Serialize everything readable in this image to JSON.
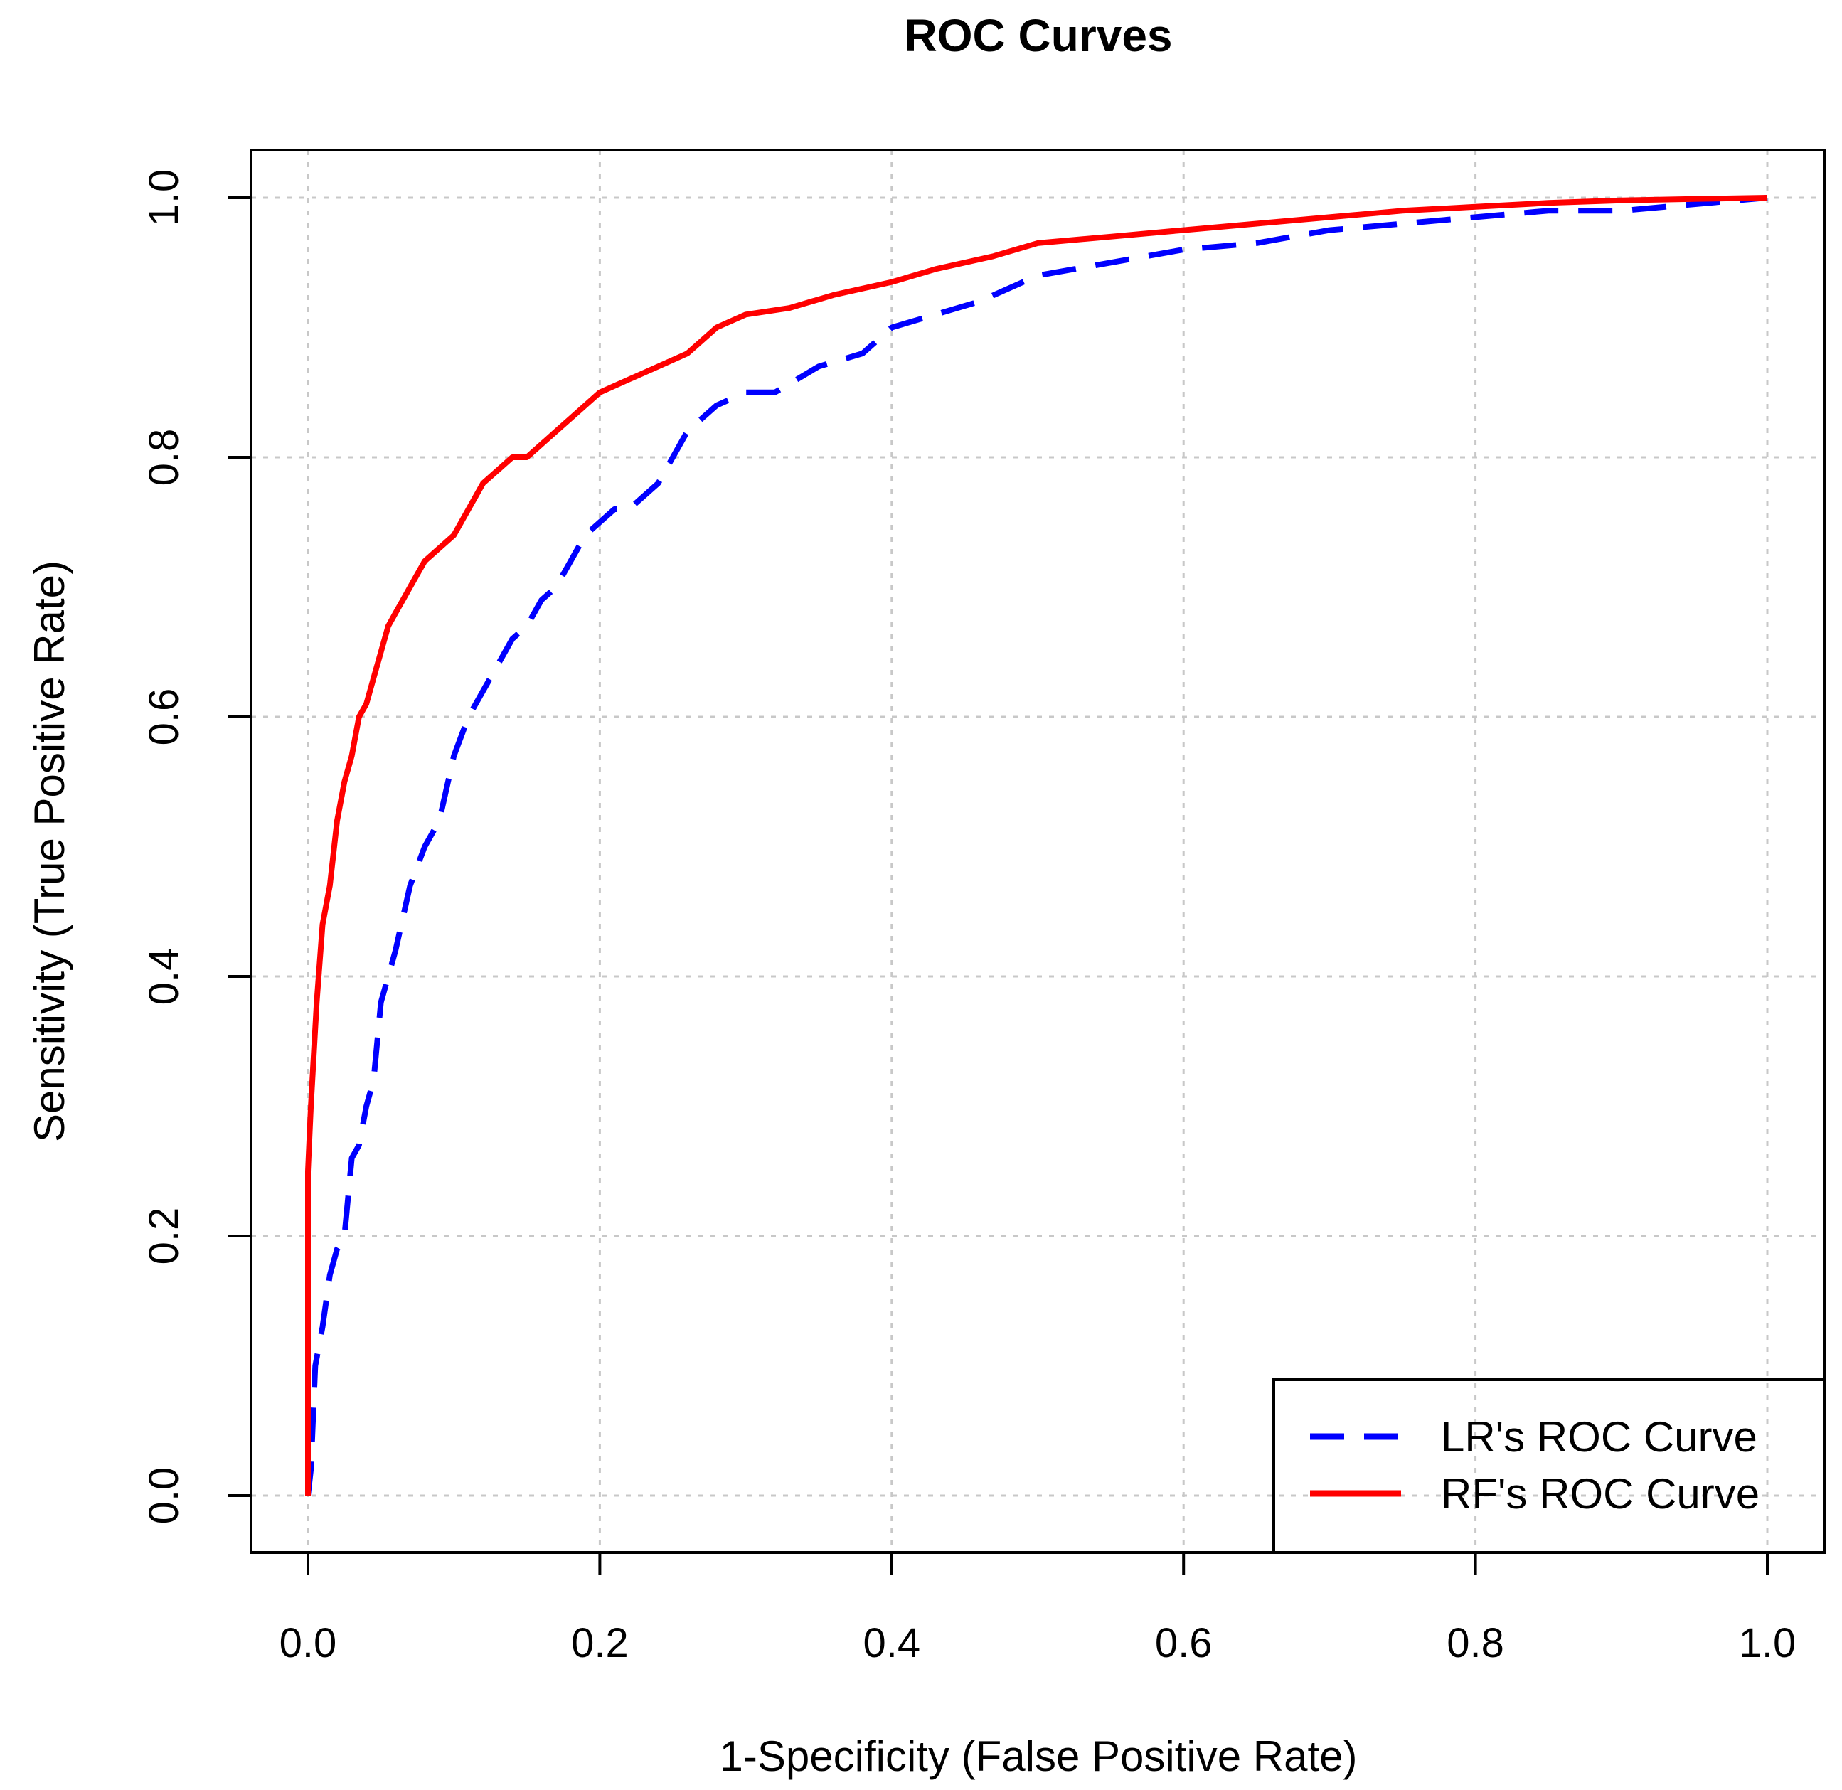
{
  "chart_data": {
    "type": "line",
    "title": "ROC Curves",
    "xlabel": "1-Specificity (False Positive Rate)",
    "ylabel": "Sensitivity (True Positive Rate)",
    "xlim": [
      0,
      1
    ],
    "ylim": [
      0,
      1
    ],
    "xticks": [
      "0.0",
      "0.2",
      "0.4",
      "0.6",
      "0.8",
      "1.0"
    ],
    "yticks": [
      "0.0",
      "0.2",
      "0.4",
      "0.6",
      "0.8",
      "1.0"
    ],
    "grid": true,
    "legend_position": "bottom-right",
    "series": [
      {
        "name": "LR's ROC Curve",
        "color": "#0000FF",
        "style": "dashed",
        "x": [
          0.0,
          0.002,
          0.005,
          0.01,
          0.015,
          0.02,
          0.025,
          0.03,
          0.035,
          0.04,
          0.045,
          0.05,
          0.055,
          0.06,
          0.07,
          0.08,
          0.09,
          0.1,
          0.11,
          0.12,
          0.125,
          0.13,
          0.14,
          0.15,
          0.16,
          0.17,
          0.18,
          0.19,
          0.2,
          0.21,
          0.22,
          0.24,
          0.25,
          0.26,
          0.28,
          0.3,
          0.32,
          0.35,
          0.38,
          0.4,
          0.43,
          0.46,
          0.5,
          0.55,
          0.6,
          0.65,
          0.7,
          0.75,
          0.8,
          0.85,
          0.9,
          0.95,
          1.0
        ],
        "y": [
          0.0,
          0.02,
          0.1,
          0.13,
          0.17,
          0.19,
          0.2,
          0.26,
          0.27,
          0.3,
          0.32,
          0.38,
          0.4,
          0.42,
          0.47,
          0.5,
          0.52,
          0.57,
          0.6,
          0.62,
          0.63,
          0.64,
          0.66,
          0.67,
          0.69,
          0.7,
          0.72,
          0.74,
          0.75,
          0.76,
          0.76,
          0.78,
          0.8,
          0.82,
          0.84,
          0.85,
          0.85,
          0.87,
          0.88,
          0.9,
          0.91,
          0.92,
          0.94,
          0.95,
          0.96,
          0.965,
          0.975,
          0.98,
          0.985,
          0.99,
          0.99,
          0.995,
          1.0
        ]
      },
      {
        "name": "RF's ROC Curve",
        "color": "#FF0000",
        "style": "solid",
        "x": [
          0.0,
          0.0,
          0.002,
          0.004,
          0.006,
          0.008,
          0.01,
          0.015,
          0.02,
          0.025,
          0.03,
          0.035,
          0.04,
          0.045,
          0.05,
          0.055,
          0.06,
          0.065,
          0.07,
          0.08,
          0.09,
          0.1,
          0.11,
          0.12,
          0.13,
          0.14,
          0.15,
          0.16,
          0.17,
          0.18,
          0.19,
          0.2,
          0.22,
          0.24,
          0.26,
          0.28,
          0.3,
          0.33,
          0.36,
          0.4,
          0.43,
          0.47,
          0.5,
          0.55,
          0.6,
          0.65,
          0.7,
          0.75,
          0.8,
          0.85,
          0.9,
          0.95,
          1.0
        ],
        "y": [
          0.0,
          0.25,
          0.3,
          0.34,
          0.38,
          0.41,
          0.44,
          0.47,
          0.52,
          0.55,
          0.57,
          0.6,
          0.61,
          0.63,
          0.65,
          0.67,
          0.68,
          0.69,
          0.7,
          0.72,
          0.73,
          0.74,
          0.76,
          0.78,
          0.79,
          0.8,
          0.8,
          0.81,
          0.82,
          0.83,
          0.84,
          0.85,
          0.86,
          0.87,
          0.88,
          0.9,
          0.91,
          0.915,
          0.925,
          0.935,
          0.945,
          0.955,
          0.965,
          0.97,
          0.975,
          0.98,
          0.985,
          0.99,
          0.993,
          0.996,
          0.998,
          0.999,
          1.0
        ]
      }
    ]
  }
}
